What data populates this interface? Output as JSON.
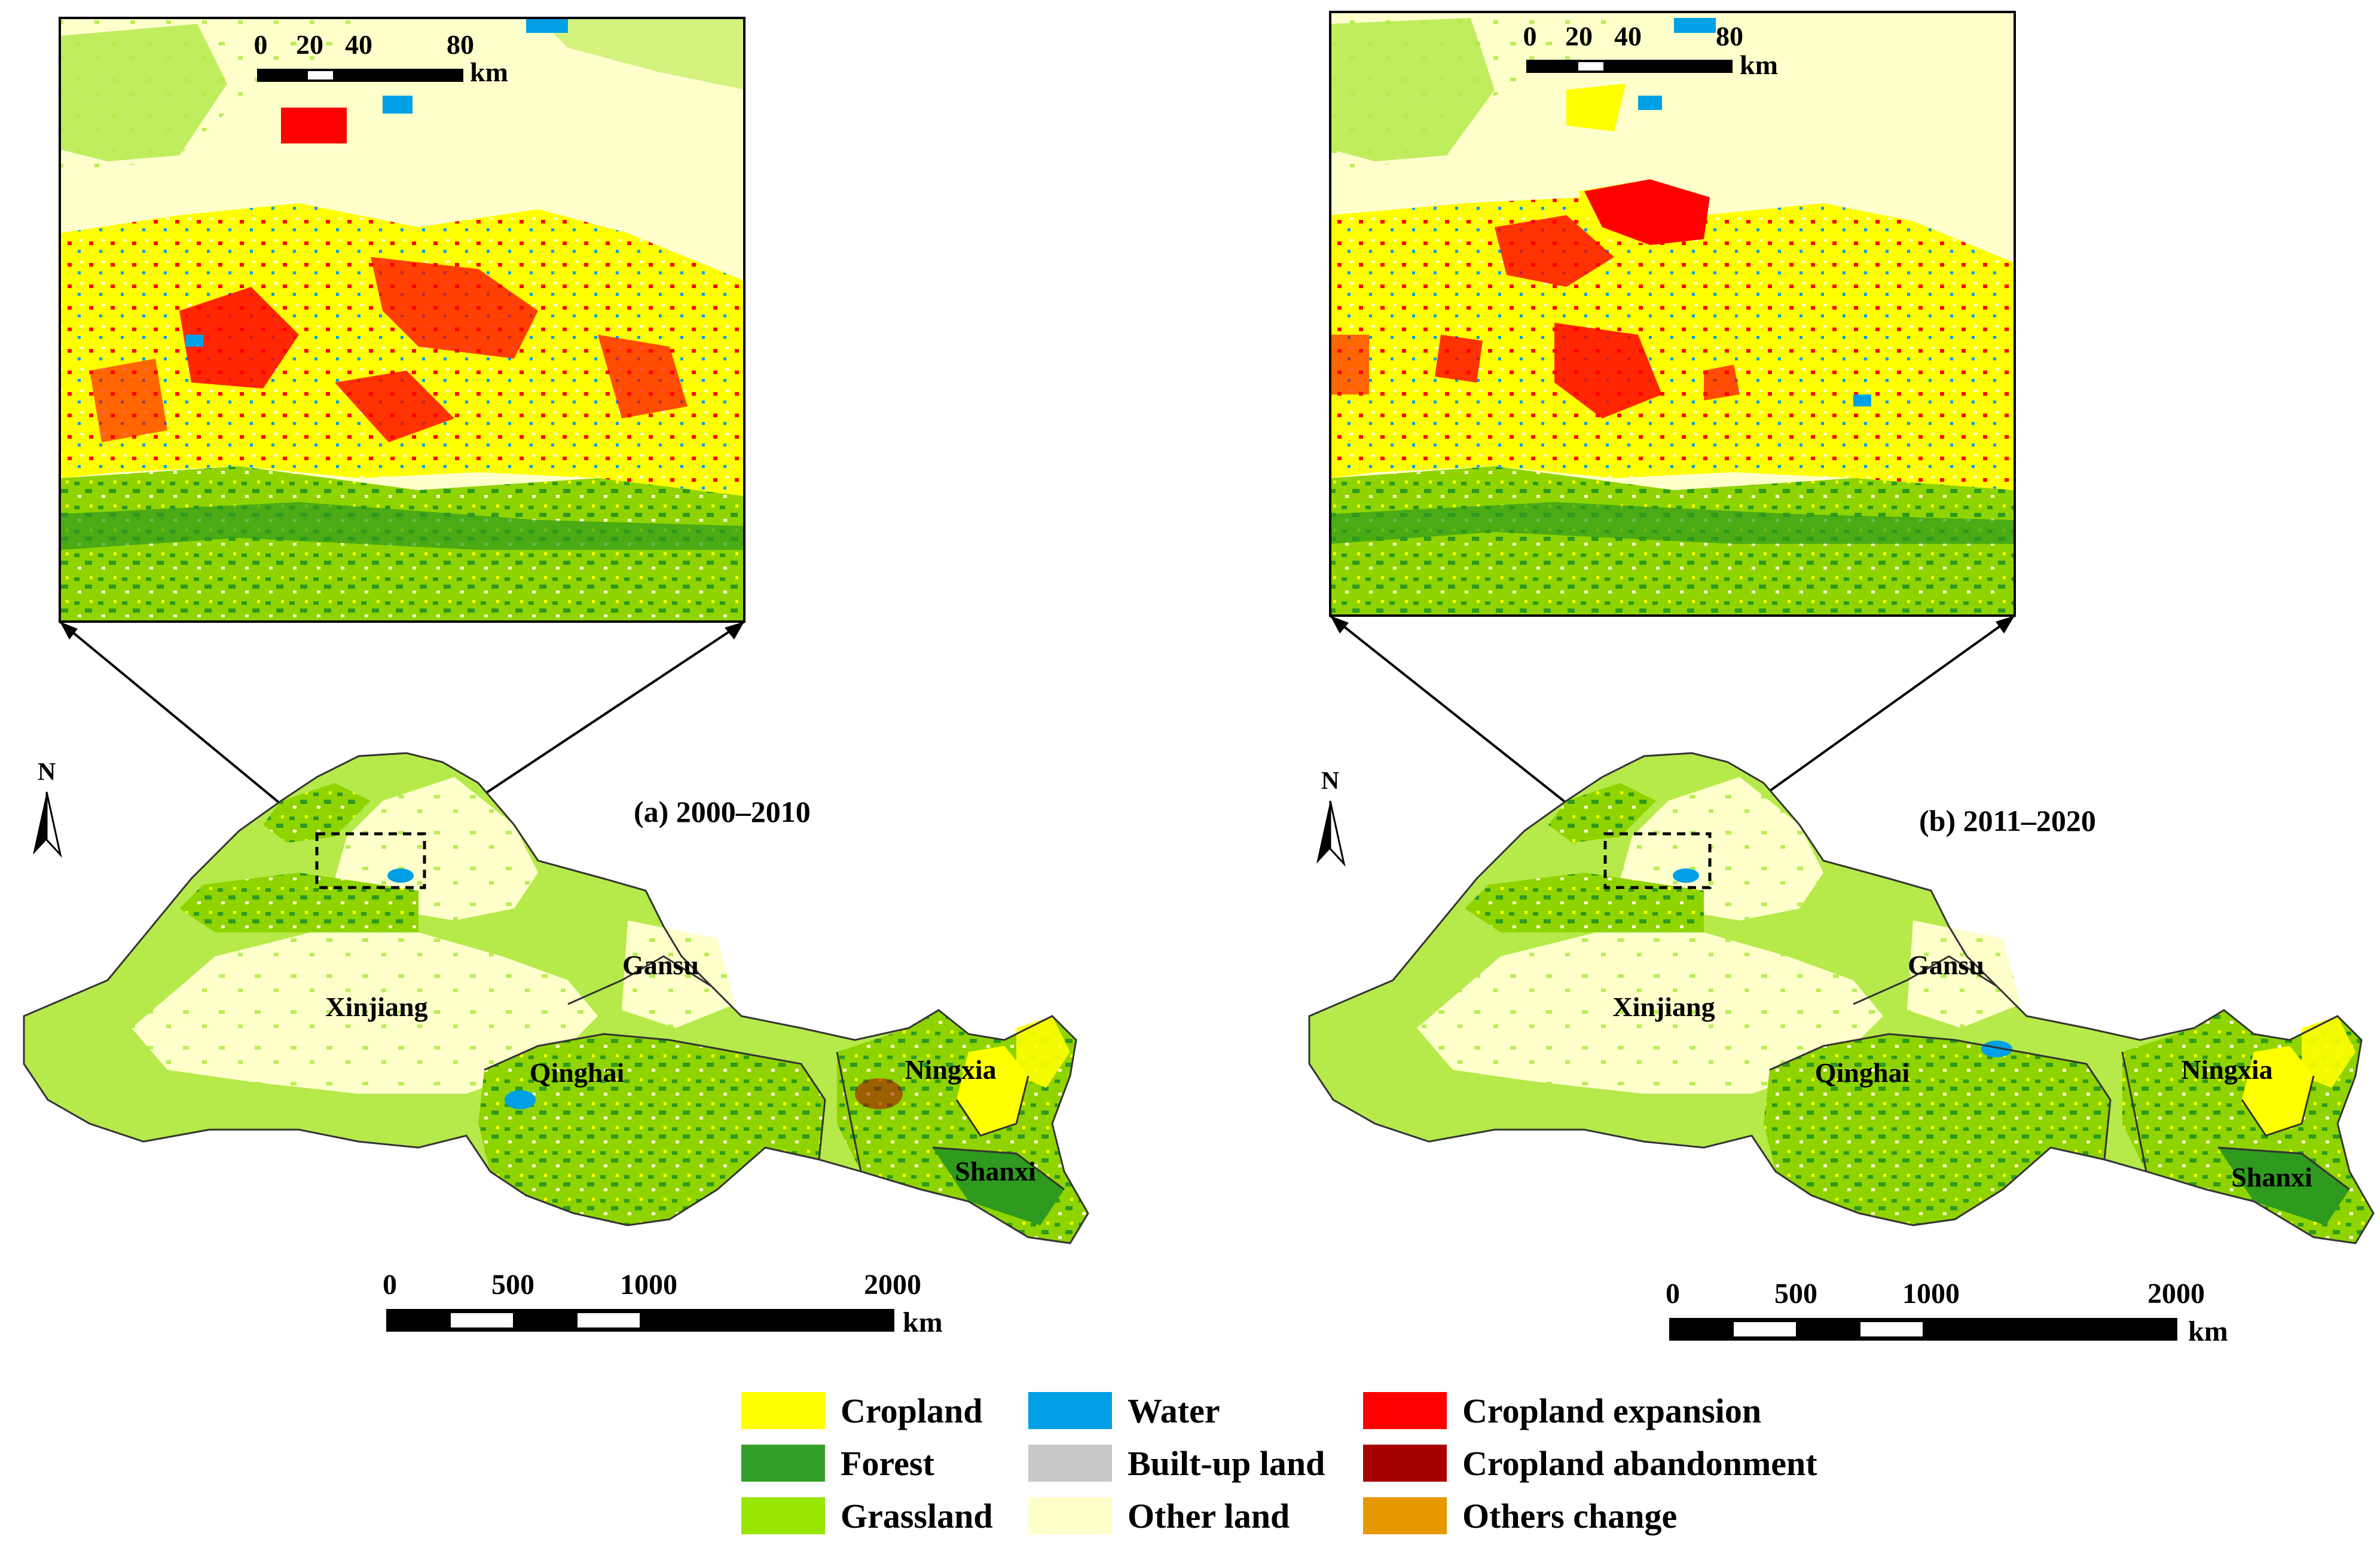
{
  "panels": [
    {
      "id": "a",
      "label": "(a)  2000–2010",
      "inset_scale": {
        "ticks": [
          "0",
          "20",
          "40",
          "80"
        ],
        "unit": "km"
      },
      "main_scale": {
        "ticks": [
          "0",
          "500",
          "1000",
          "2000"
        ],
        "unit": "km"
      }
    },
    {
      "id": "b",
      "label": "(b)  2011–2020",
      "inset_scale": {
        "ticks": [
          "0",
          "20",
          "40",
          "80"
        ],
        "unit": "km"
      },
      "main_scale": {
        "ticks": [
          "0",
          "500",
          "1000",
          "2000"
        ],
        "unit": "km"
      }
    }
  ],
  "north_arrow": {
    "label": "N"
  },
  "regions": [
    "Xinjiang",
    "Gansu",
    "Qinghai",
    "Ningxia",
    "Shanxi"
  ],
  "legend": [
    {
      "label": "Cropland",
      "color": "#ffff00"
    },
    {
      "label": "Forest",
      "color": "#33a02c"
    },
    {
      "label": "Grassland",
      "color": "#99e600"
    },
    {
      "label": "Water",
      "color": "#00a0e6"
    },
    {
      "label": "Built-up land",
      "color": "#c8c8c8"
    },
    {
      "label": "Other land",
      "color": "#ffffcc"
    },
    {
      "label": "Cropland expansion",
      "color": "#ff0000"
    },
    {
      "label": "Cropland abandonment",
      "color": "#a80000"
    },
    {
      "label": "Others change",
      "color": "#e69800"
    }
  ]
}
